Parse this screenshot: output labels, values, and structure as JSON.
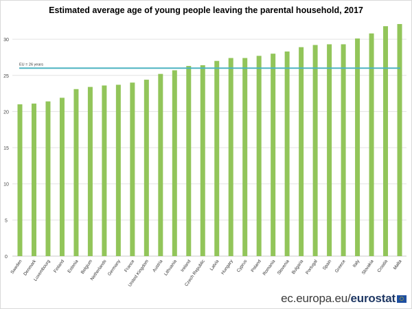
{
  "chart_data": {
    "type": "bar",
    "title": "Estimated average age of young people leaving the parental household, 2017",
    "xlabel": "",
    "ylabel": "",
    "ylim": [
      0,
      33
    ],
    "yticks": [
      0,
      5,
      10,
      15,
      20,
      25,
      30
    ],
    "grid": true,
    "bar_color": "#92c55a",
    "categories": [
      "Sweden",
      "Denmark",
      "Luxembourg",
      "Finland",
      "Estonia",
      "Belgium",
      "Netherlands",
      "Germany",
      "France",
      "United Kingdom",
      "Austria",
      "Lithuania",
      "Ireland",
      "Czech Republic",
      "Latvia",
      "Hungary",
      "Cyprus",
      "Poland",
      "Romania",
      "Slovenia",
      "Bulgaria",
      "Portugal",
      "Spain",
      "Greece",
      "Italy",
      "Slovakia",
      "Croatia",
      "Malta"
    ],
    "values": [
      21.0,
      21.1,
      21.4,
      21.9,
      23.1,
      23.4,
      23.6,
      23.7,
      24.0,
      24.4,
      25.2,
      25.7,
      26.3,
      26.4,
      27.0,
      27.4,
      27.4,
      27.7,
      28.0,
      28.3,
      28.9,
      29.2,
      29.3,
      29.3,
      30.1,
      30.8,
      31.8,
      32.1
    ],
    "reference_line": {
      "label": "EU = 26 years",
      "value": 26,
      "color": "#4bb3c1"
    }
  },
  "footer": {
    "url_prefix": "ec.europa.eu/",
    "url_brand": "eurostat"
  }
}
